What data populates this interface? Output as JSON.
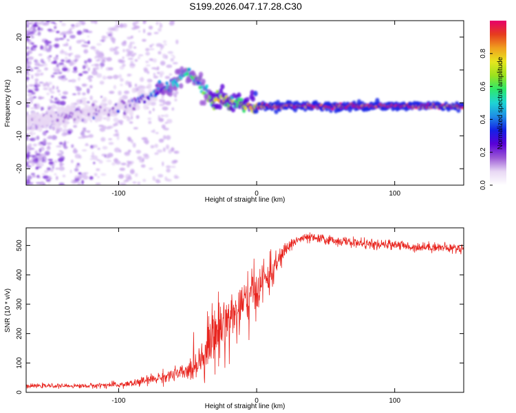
{
  "title": "S199.2026.047.17.28.C30",
  "chart_data": [
    {
      "type": "heatmap",
      "xlabel": "Height of straight line (km)",
      "ylabel": "Frequency (Hz)",
      "xlim": [
        -167,
        150
      ],
      "ylim": [
        -25,
        25
      ],
      "xticks": [
        -100,
        0,
        100
      ],
      "yticks": [
        -20,
        -10,
        0,
        10,
        20
      ],
      "ridge": {
        "x": [
          -167,
          -140,
          -120,
          -100,
          -90,
          -80,
          -70,
          -60,
          -55,
          -50,
          -45,
          -40,
          -35,
          -30,
          -25,
          -20,
          -15,
          -10,
          -5,
          0,
          5,
          10,
          50,
          100,
          150
        ],
        "freq_hz": [
          -6,
          -4,
          -3,
          -2,
          0,
          2,
          4,
          6,
          8,
          9,
          8,
          5,
          2,
          1,
          1,
          0,
          0,
          0,
          -1,
          -1,
          -1,
          -1,
          -1,
          -1,
          -1
        ],
        "amplitude": [
          0.05,
          0.08,
          0.1,
          0.15,
          0.22,
          0.3,
          0.38,
          0.45,
          0.5,
          0.5,
          0.48,
          0.42,
          0.55,
          0.7,
          0.75,
          0.65,
          0.6,
          0.6,
          0.8,
          0.85,
          0.9,
          0.95,
          0.95,
          0.95,
          0.95
        ]
      },
      "colorbar": {
        "label": "Normalized spectral amplitude",
        "range": [
          0,
          1
        ],
        "ticks": [
          0.0,
          0.2,
          0.4,
          0.6,
          0.8
        ],
        "tick_labels": [
          "0.0",
          "0.2",
          "0.4",
          "0.6",
          "0.8"
        ],
        "colormap": [
          "#ffffff",
          "#e8d8f4",
          "#9b59d6",
          "#5a00d8",
          "#1420e6",
          "#1e8ce6",
          "#1ed4d4",
          "#2ee86a",
          "#9be21e",
          "#e6e61e",
          "#f0a01e",
          "#e63c1e",
          "#e6006a"
        ]
      }
    },
    {
      "type": "line",
      "xlabel": "Height of straight line (km)",
      "ylabel": "SNR (10 * v/v)",
      "xlim": [
        -167,
        150
      ],
      "ylim": [
        0,
        560
      ],
      "xticks": [
        -100,
        0,
        100
      ],
      "yticks": [
        0,
        100,
        200,
        300,
        400,
        500
      ],
      "series": [
        {
          "name": "SNR",
          "color": "#e8241e",
          "x": [
            -167,
            -160,
            -150,
            -140,
            -130,
            -120,
            -110,
            -100,
            -90,
            -80,
            -70,
            -60,
            -50,
            -45,
            -40,
            -35,
            -30,
            -25,
            -20,
            -15,
            -10,
            -5,
            0,
            5,
            10,
            15,
            20,
            25,
            30,
            35,
            40,
            50,
            60,
            70,
            80,
            90,
            100,
            110,
            120,
            130,
            140,
            150
          ],
          "y": [
            20,
            22,
            22,
            22,
            22,
            22,
            25,
            25,
            30,
            40,
            50,
            60,
            70,
            95,
            120,
            170,
            200,
            230,
            250,
            270,
            290,
            320,
            350,
            380,
            400,
            440,
            480,
            505,
            520,
            525,
            525,
            520,
            515,
            510,
            505,
            500,
            505,
            495,
            495,
            495,
            490,
            490
          ],
          "noise": [
            5,
            5,
            5,
            5,
            5,
            6,
            7,
            8,
            10,
            12,
            15,
            18,
            22,
            40,
            50,
            70,
            80,
            80,
            80,
            80,
            75,
            70,
            60,
            55,
            45,
            30,
            20,
            15,
            12,
            12,
            12,
            12,
            12,
            12,
            12,
            12,
            12,
            12,
            12,
            12,
            12,
            12
          ]
        }
      ]
    }
  ]
}
